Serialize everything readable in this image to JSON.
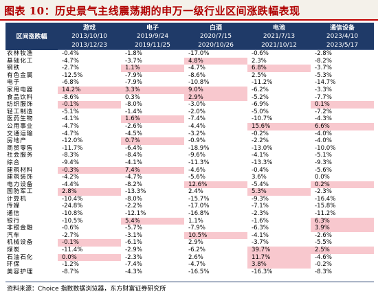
{
  "title": "图表 10：历史景气主线震荡期的申万一级行业区间涨跌幅表现",
  "corner_label": "区间涨跌幅",
  "columns": [
    {
      "name": "游戏",
      "start": "2013/10/10",
      "end": "2013/12/23"
    },
    {
      "name": "电子",
      "start": "2019/9/24",
      "end": "2019/11/25"
    },
    {
      "name": "白酒",
      "start": "2020/7/15",
      "end": "2020/10/26"
    },
    {
      "name": "电池",
      "start": "2021/7/13",
      "end": "2021/10/12"
    },
    {
      "name": "通信设备",
      "start": "2023/4/10",
      "end": "2023/5/17"
    }
  ],
  "rows": [
    {
      "industry": "农林牧渔",
      "values": [
        "-0.4%",
        "-1.8%",
        "-17.0%",
        "-0.6%",
        "-2.8%"
      ],
      "highlight": [
        false,
        false,
        false,
        false,
        false
      ]
    },
    {
      "industry": "基础化工",
      "values": [
        "-4.7%",
        "-3.7%",
        "4.8%",
        "2.3%",
        "-8.2%"
      ],
      "highlight": [
        false,
        false,
        true,
        false,
        false
      ]
    },
    {
      "industry": "钢铁",
      "values": [
        "-2.7%",
        "1.1%",
        "-4.7%",
        "6.8%",
        "-3.7%"
      ],
      "highlight": [
        false,
        true,
        false,
        true,
        false
      ]
    },
    {
      "industry": "有色金属",
      "values": [
        "-12.5%",
        "-7.9%",
        "-8.6%",
        "2.5%",
        "-5.3%"
      ],
      "highlight": [
        false,
        false,
        false,
        false,
        false
      ]
    },
    {
      "industry": "电子",
      "values": [
        "-6.8%",
        "-7.9%",
        "-10.8%",
        "-11.2%",
        "-14.7%"
      ],
      "highlight": [
        false,
        false,
        false,
        false,
        false
      ]
    },
    {
      "industry": "家用电器",
      "values": [
        "14.2%",
        "3.3%",
        "9.0%",
        "-6.2%",
        "-3.3%"
      ],
      "highlight": [
        true,
        true,
        true,
        false,
        false
      ]
    },
    {
      "industry": "食品饮料",
      "values": [
        "-8.6%",
        "0.3%",
        "2.9%",
        "-5.2%",
        "-7.7%"
      ],
      "highlight": [
        false,
        false,
        true,
        false,
        false
      ]
    },
    {
      "industry": "纺织服饰",
      "values": [
        "-0.1%",
        "-8.0%",
        "-3.0%",
        "-6.9%",
        "0.1%"
      ],
      "highlight": [
        true,
        false,
        false,
        false,
        true
      ]
    },
    {
      "industry": "轻工制造",
      "values": [
        "-5.1%",
        "-1.4%",
        "-2.0%",
        "-5.0%",
        "-7.2%"
      ],
      "highlight": [
        false,
        false,
        false,
        false,
        false
      ]
    },
    {
      "industry": "医药生物",
      "values": [
        "-4.1%",
        "1.6%",
        "-7.4%",
        "-10.7%",
        "-4.3%"
      ],
      "highlight": [
        false,
        true,
        false,
        false,
        false
      ]
    },
    {
      "industry": "公用事业",
      "values": [
        "-4.7%",
        "-2.6%",
        "-4.4%",
        "15.6%",
        "6.6%"
      ],
      "highlight": [
        false,
        false,
        false,
        true,
        true
      ]
    },
    {
      "industry": "交通运输",
      "values": [
        "-4.7%",
        "-4.5%",
        "-3.2%",
        "-0.2%",
        "-4.0%"
      ],
      "highlight": [
        false,
        false,
        false,
        false,
        false
      ]
    },
    {
      "industry": "房地产",
      "values": [
        "-12.0%",
        "0.7%",
        "-0.9%",
        "-2.2%",
        "-4.0%"
      ],
      "highlight": [
        false,
        true,
        false,
        false,
        false
      ]
    },
    {
      "industry": "商贸零售",
      "values": [
        "-11.7%",
        "-6.4%",
        "-18.9%",
        "-13.0%",
        "-10.0%"
      ],
      "highlight": [
        false,
        false,
        false,
        false,
        false
      ]
    },
    {
      "industry": "社会服务",
      "values": [
        "-8.3%",
        "-8.4%",
        "-9.6%",
        "-4.1%",
        "-5.1%"
      ],
      "highlight": [
        false,
        false,
        false,
        false,
        false
      ]
    },
    {
      "industry": "综合",
      "values": [
        "-9.4%",
        "-4.1%",
        "-11.3%",
        "-13.3%",
        "-9.3%"
      ],
      "highlight": [
        false,
        false,
        false,
        false,
        false
      ]
    },
    {
      "industry": "建筑材料",
      "values": [
        "-0.3%",
        "7.4%",
        "-4.6%",
        "-0.4%",
        "-5.6%"
      ],
      "highlight": [
        true,
        true,
        false,
        false,
        false
      ]
    },
    {
      "industry": "建筑装饰",
      "values": [
        "-4.2%",
        "-4.7%",
        "-5.6%",
        "3.6%",
        "0.0%"
      ],
      "highlight": [
        false,
        false,
        false,
        false,
        false
      ]
    },
    {
      "industry": "电力设备",
      "values": [
        "-4.4%",
        "-8.2%",
        "12.6%",
        "-5.4%",
        "0.2%"
      ],
      "highlight": [
        false,
        false,
        true,
        false,
        true
      ]
    },
    {
      "industry": "国防军工",
      "values": [
        "2.8%",
        "-13.3%",
        "2.4%",
        "5.3%",
        "-2.3%"
      ],
      "highlight": [
        true,
        false,
        false,
        true,
        false
      ]
    },
    {
      "industry": "计算机",
      "values": [
        "-10.4%",
        "-8.0%",
        "-15.7%",
        "-9.3%",
        "-16.4%"
      ],
      "highlight": [
        false,
        false,
        false,
        false,
        false
      ]
    },
    {
      "industry": "传媒",
      "values": [
        "-24.8%",
        "-2.2%",
        "-17.0%",
        "-7.1%",
        "-15.8%"
      ],
      "highlight": [
        false,
        false,
        false,
        false,
        false
      ]
    },
    {
      "industry": "通信",
      "values": [
        "-10.8%",
        "-12.1%",
        "-16.8%",
        "-2.3%",
        "-11.2%"
      ],
      "highlight": [
        false,
        false,
        false,
        false,
        false
      ]
    },
    {
      "industry": "银行",
      "values": [
        "-10.5%",
        "5.4%",
        "1.1%",
        "-1.6%",
        "6.3%"
      ],
      "highlight": [
        false,
        true,
        false,
        false,
        true
      ]
    },
    {
      "industry": "非银金融",
      "values": [
        "-0.6%",
        "-5.7%",
        "-7.9%",
        "-6.3%",
        "3.9%"
      ],
      "highlight": [
        false,
        false,
        false,
        false,
        true
      ]
    },
    {
      "industry": "汽车",
      "values": [
        "-2.7%",
        "-3.1%",
        "10.5%",
        "-4.1%",
        "-2.6%"
      ],
      "highlight": [
        false,
        false,
        true,
        false,
        false
      ]
    },
    {
      "industry": "机械设备",
      "values": [
        "-0.1%",
        "-6.1%",
        "2.9%",
        "-3.7%",
        "-5.5%"
      ],
      "highlight": [
        true,
        false,
        false,
        false,
        false
      ]
    },
    {
      "industry": "煤炭",
      "values": [
        "-11.4%",
        "-2.9%",
        "-6.2%",
        "39.7%",
        "2.5%"
      ],
      "highlight": [
        false,
        false,
        false,
        true,
        true
      ]
    },
    {
      "industry": "石油石化",
      "values": [
        "0.0%",
        "-2.3%",
        "2.6%",
        "11.7%",
        "-4.6%"
      ],
      "highlight": [
        true,
        false,
        false,
        true,
        false
      ]
    },
    {
      "industry": "环保",
      "values": [
        "-1.2%",
        "-7.4%",
        "-4.7%",
        "3.8%",
        "-0.2%"
      ],
      "highlight": [
        false,
        false,
        false,
        true,
        false
      ]
    },
    {
      "industry": "美容护理",
      "values": [
        "-8.7%",
        "-4.3%",
        "-16.5%",
        "-16.3%",
        "-8.3%"
      ],
      "highlight": [
        false,
        false,
        false,
        false,
        false
      ]
    }
  ],
  "source": "资料来源：Choice 指数数据浏览器，东方财富证券研究所"
}
